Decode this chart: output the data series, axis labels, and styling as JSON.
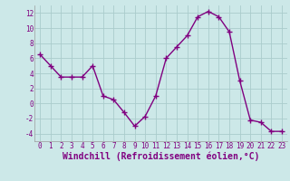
{
  "x": [
    0,
    1,
    2,
    3,
    4,
    5,
    6,
    7,
    8,
    9,
    10,
    11,
    12,
    13,
    14,
    15,
    16,
    17,
    18,
    19,
    20,
    21,
    22,
    23
  ],
  "y": [
    6.5,
    5.0,
    3.5,
    3.5,
    3.5,
    5.0,
    1.0,
    0.5,
    -1.2,
    -3.0,
    -1.7,
    1.0,
    6.0,
    7.5,
    9.0,
    11.5,
    12.2,
    11.5,
    9.5,
    3.0,
    -2.2,
    -2.5,
    -3.7,
    -3.7
  ],
  "line_color": "#800080",
  "marker": "+",
  "marker_size": 4,
  "bg_color": "#cce8e8",
  "grid_color": "#aacccc",
  "xlabel": "Windchill (Refroidissement éolien,°C)",
  "ylim": [
    -5,
    13
  ],
  "xlim": [
    -0.5,
    23.5
  ],
  "yticks": [
    -4,
    -2,
    0,
    2,
    4,
    6,
    8,
    10,
    12
  ],
  "xticks": [
    0,
    1,
    2,
    3,
    4,
    5,
    6,
    7,
    8,
    9,
    10,
    11,
    12,
    13,
    14,
    15,
    16,
    17,
    18,
    19,
    20,
    21,
    22,
    23
  ],
  "tick_label_fontsize": 5.5,
  "xlabel_fontsize": 7.0
}
